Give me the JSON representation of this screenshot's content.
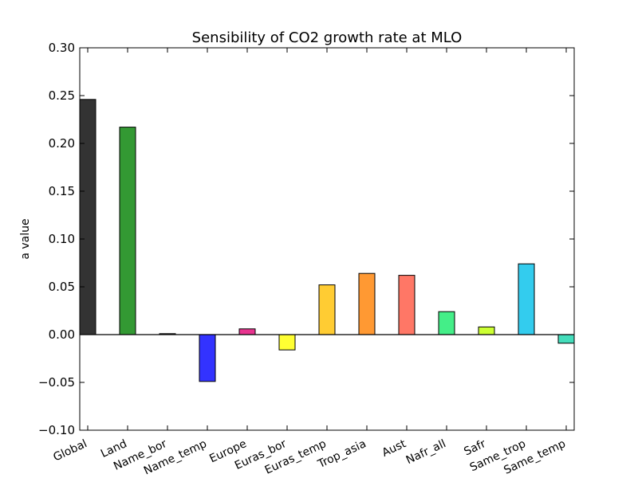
{
  "chart_data": {
    "type": "bar",
    "title": "Sensibility of CO2 growth rate at MLO",
    "xlabel": "",
    "ylabel": "a value",
    "ylim": [
      -0.1,
      0.3
    ],
    "yticks": [
      "0.30",
      "0.25",
      "0.20",
      "0.15",
      "0.10",
      "0.05",
      "0.00",
      "−0.05",
      "−0.10"
    ],
    "ytick_values": [
      0.3,
      0.25,
      0.2,
      0.15,
      0.1,
      0.05,
      0.0,
      -0.05,
      -0.1
    ],
    "categories": [
      "Global",
      "Land",
      "Name_bor",
      "Name_temp",
      "Europe",
      "Euras_bor",
      "Euras_temp",
      "Trop_asia",
      "Aust",
      "Nafr_all",
      "Safr",
      "Same_trop",
      "Same_temp"
    ],
    "values": [
      0.246,
      0.217,
      0.001,
      -0.049,
      0.006,
      -0.016,
      0.052,
      0.064,
      0.062,
      0.024,
      0.008,
      0.074,
      -0.009
    ],
    "colors": [
      "#333333",
      "#339933",
      "#333333",
      "#3333ff",
      "#e8338f",
      "#ffff33",
      "#ffcc33",
      "#ff9933",
      "#ff7766",
      "#44ee88",
      "#ccff33",
      "#33ccee",
      "#44ddbb"
    ],
    "grid": false,
    "legend": "none"
  }
}
